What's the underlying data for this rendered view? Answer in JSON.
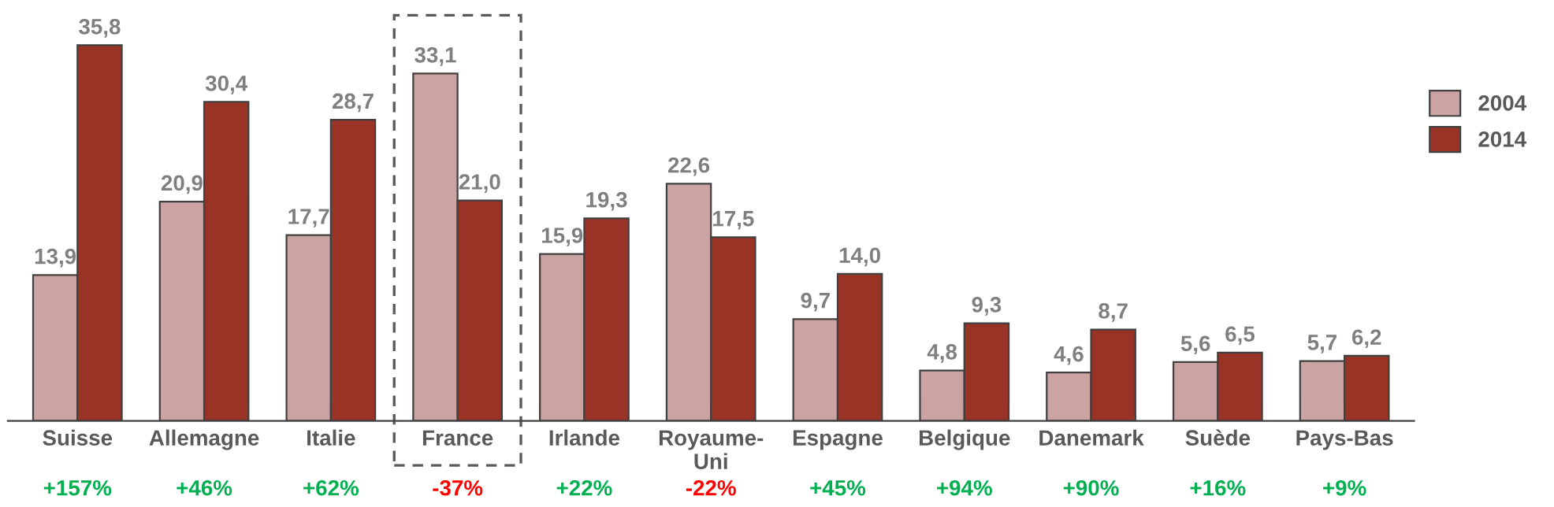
{
  "chart_data": {
    "type": "bar",
    "categories": [
      "Suisse",
      "Allemagne",
      "Italie",
      "France",
      "Irlande",
      "Royaume-\nUni",
      "Espagne",
      "Belgique",
      "Danemark",
      "Suède",
      "Pays-Bas"
    ],
    "series": [
      {
        "name": "2004",
        "color": "#cca3a3",
        "values": [
          13.9,
          20.9,
          17.7,
          33.1,
          15.9,
          22.6,
          9.7,
          4.8,
          4.6,
          5.6,
          5.7
        ],
        "value_labels": [
          "13,9",
          "20,9",
          "17,7",
          "33,1",
          "15,9",
          "22,6",
          "9,7",
          "4,8",
          "4,6",
          "5,6",
          "5,7"
        ]
      },
      {
        "name": "2014",
        "color": "#993326",
        "values": [
          35.8,
          30.4,
          28.7,
          21.0,
          19.3,
          17.5,
          14.0,
          9.3,
          8.7,
          6.5,
          6.2
        ],
        "value_labels": [
          "35,8",
          "30,4",
          "28,7",
          "21,0",
          "19,3",
          "17,5",
          "14,0",
          "9,3",
          "8,7",
          "6,5",
          "6,2"
        ]
      }
    ],
    "annotations": [
      "+157%",
      "+46%",
      "+62%",
      "-37%",
      "+22%",
      "-22%",
      "+45%",
      "+94%",
      "+90%",
      "+16%",
      "+9%"
    ],
    "tick_labels": "x",
    "grid": false,
    "legend": "top right"
  }
}
